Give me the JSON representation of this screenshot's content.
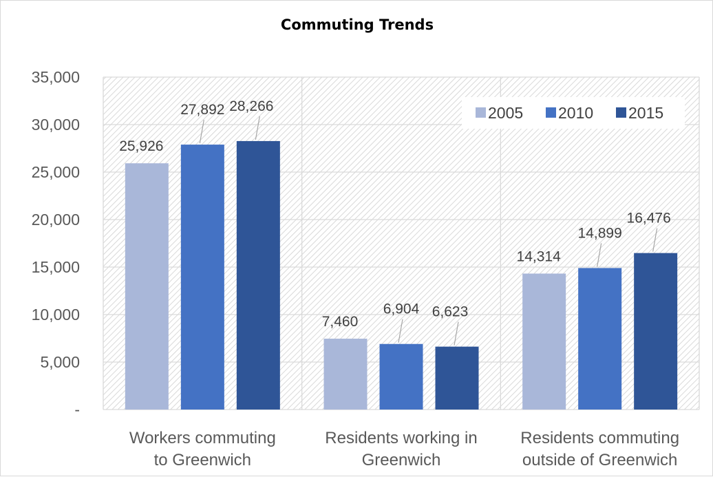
{
  "chart_data": {
    "type": "bar",
    "title": "Commuting Trends",
    "categories": [
      [
        "Workers commuting",
        "to Greenwich"
      ],
      [
        "Residents working in",
        "Greenwich"
      ],
      [
        "Residents commuting",
        "outside of Greenwich"
      ]
    ],
    "series": [
      {
        "name": "2005",
        "color": "#a9b7d9",
        "values": [
          25926,
          7460,
          14314
        ],
        "labels": [
          "25,926",
          "7,460",
          "14,314"
        ]
      },
      {
        "name": "2010",
        "color": "#4472c4",
        "values": [
          27892,
          6904,
          14899
        ],
        "labels": [
          "27,892",
          "6,904",
          "14,899"
        ]
      },
      {
        "name": "2015",
        "color": "#2f5597",
        "values": [
          28266,
          6623,
          16476
        ],
        "labels": [
          "28,266",
          "6,623",
          "16,476"
        ]
      }
    ],
    "yticks": [
      {
        "value": 0,
        "label": "-"
      },
      {
        "value": 5000,
        "label": "5,000"
      },
      {
        "value": 10000,
        "label": "10,000"
      },
      {
        "value": 15000,
        "label": "15,000"
      },
      {
        "value": 20000,
        "label": "20,000"
      },
      {
        "value": 25000,
        "label": "25,000"
      },
      {
        "value": 30000,
        "label": "30,000"
      },
      {
        "value": 35000,
        "label": "35,000"
      }
    ],
    "ylim": [
      0,
      35000
    ],
    "grid": true,
    "plot_background": "hatched",
    "legend_position": "top-right",
    "xlabel": "",
    "ylabel": ""
  }
}
